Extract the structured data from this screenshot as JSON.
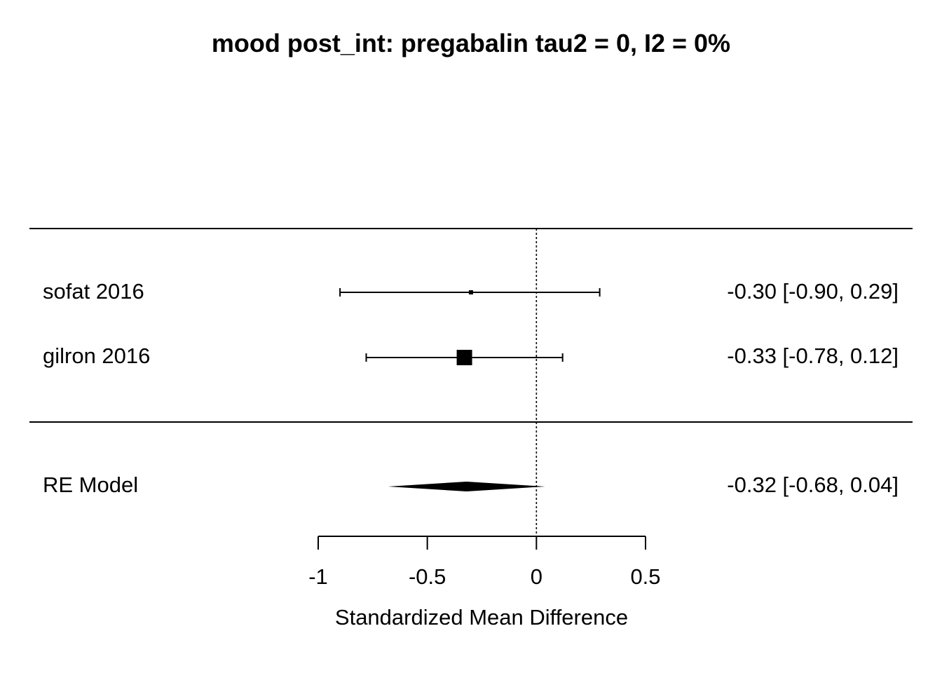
{
  "chart_data": {
    "type": "forest",
    "title": "mood post_int: pregabalin tau2 = 0, I2 = 0%",
    "xlabel": "Standardized Mean Difference",
    "xlim": [
      -1,
      0.5
    ],
    "x_ticks": [
      -1,
      -0.5,
      0,
      0.5
    ],
    "x_tick_labels": [
      "-1",
      "-0.5",
      "0",
      "0.5"
    ],
    "reference_line": 0,
    "studies": [
      {
        "label": "sofat 2016",
        "estimate": -0.3,
        "ci_lower": -0.9,
        "ci_upper": 0.29,
        "ci_text": "-0.30 [-0.90, 0.29]",
        "weight": "small"
      },
      {
        "label": "gilron 2016",
        "estimate": -0.33,
        "ci_lower": -0.78,
        "ci_upper": 0.12,
        "ci_text": "-0.33 [-0.78, 0.12]",
        "weight": "large"
      }
    ],
    "summary": {
      "label": "RE Model",
      "estimate": -0.32,
      "ci_lower": -0.68,
      "ci_upper": 0.04,
      "ci_text": "-0.32 [-0.68, 0.04]"
    },
    "colors": {
      "ink": "#000000",
      "background": "#ffffff"
    }
  }
}
